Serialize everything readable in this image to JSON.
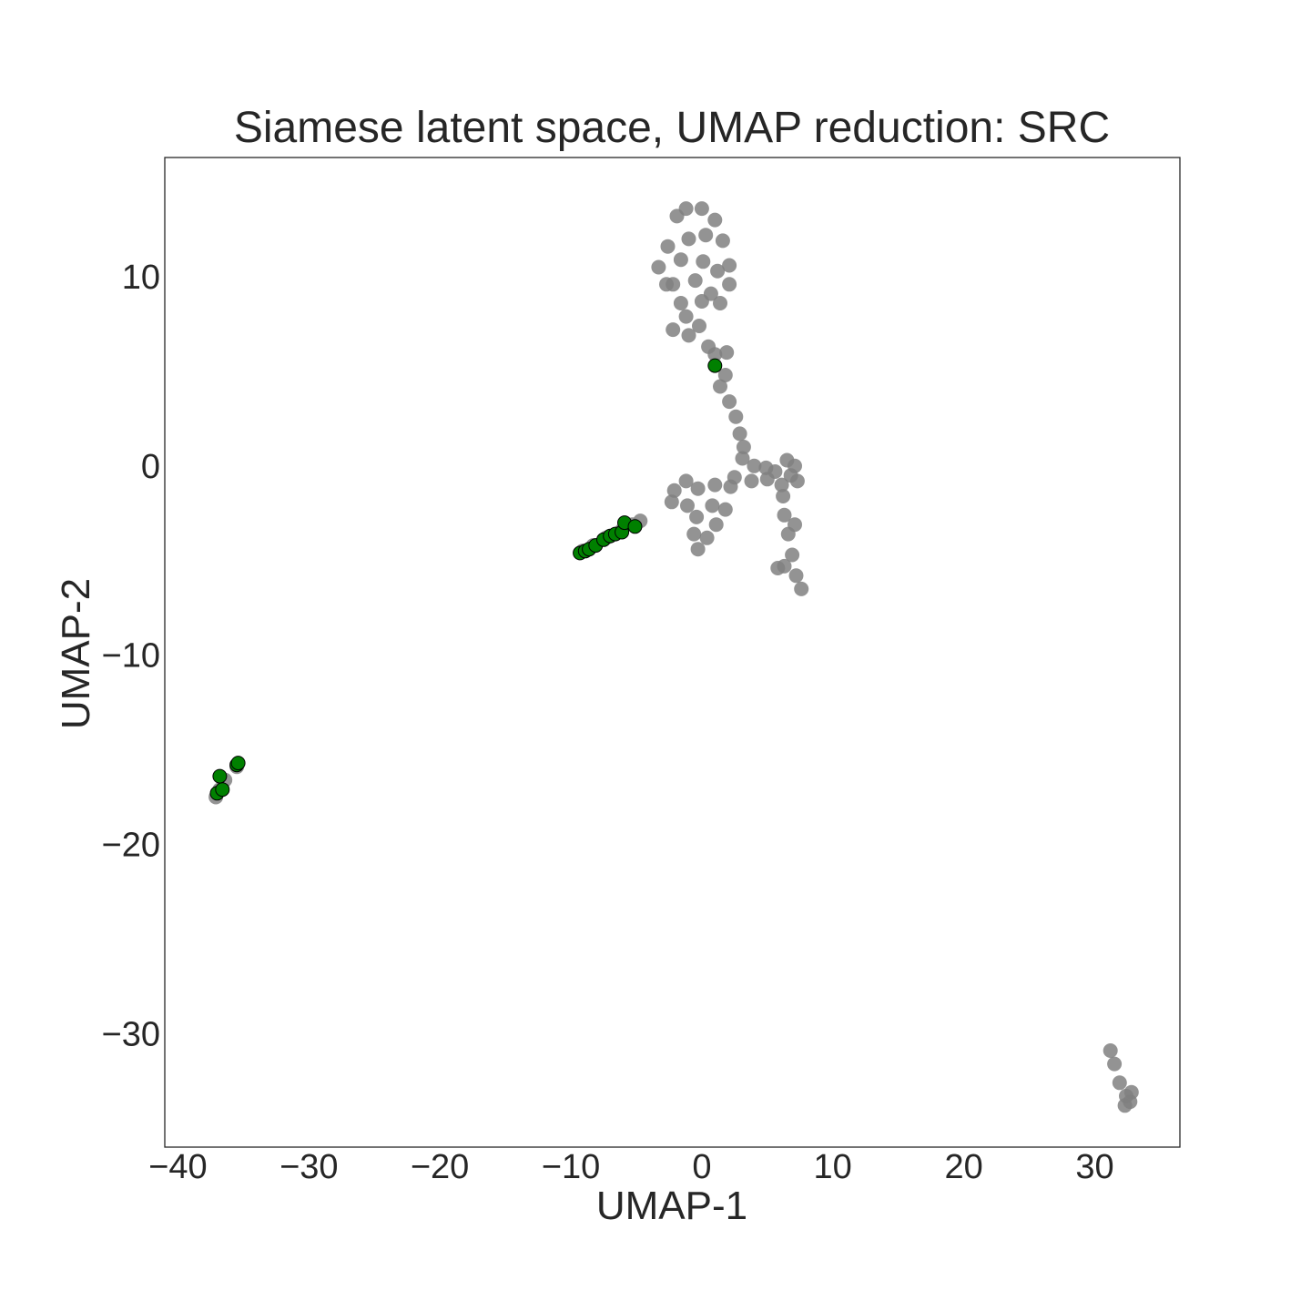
{
  "chart_data": {
    "type": "scatter",
    "title": "Siamese latent space, UMAP reduction: SRC",
    "xlabel": "UMAP-1",
    "ylabel": "UMAP-2",
    "xlim": [
      -41,
      36.5
    ],
    "ylim": [
      -36,
      16.3
    ],
    "xticks": [
      -40,
      -30,
      -20,
      -10,
      0,
      10,
      20,
      30
    ],
    "yticks": [
      10,
      0,
      -10,
      -20,
      -30
    ],
    "grid": false,
    "legend": "none",
    "series": [
      {
        "color": "#808080",
        "style": "background-cluster",
        "points": [
          [
            -1.9,
            13.2
          ],
          [
            -2.6,
            11.6
          ],
          [
            -3.3,
            10.5
          ],
          [
            -2.7,
            9.6
          ],
          [
            -1.2,
            13.6
          ],
          [
            0.0,
            13.6
          ],
          [
            1.0,
            13.0
          ],
          [
            1.6,
            11.9
          ],
          [
            2.1,
            10.6
          ],
          [
            2.1,
            9.6
          ],
          [
            1.4,
            8.6
          ],
          [
            0.7,
            9.1
          ],
          [
            -1.0,
            12.0
          ],
          [
            0.3,
            12.2
          ],
          [
            -1.6,
            10.9
          ],
          [
            0.1,
            10.8
          ],
          [
            -2.2,
            9.6
          ],
          [
            -0.5,
            9.8
          ],
          [
            1.2,
            10.3
          ],
          [
            -1.6,
            8.6
          ],
          [
            0.0,
            8.7
          ],
          [
            -1.2,
            7.9
          ],
          [
            -2.2,
            7.2
          ],
          [
            -1.0,
            6.9
          ],
          [
            -0.2,
            7.4
          ],
          [
            0.5,
            6.3
          ],
          [
            1.0,
            5.9
          ],
          [
            1.9,
            6.0
          ],
          [
            1.8,
            4.8
          ],
          [
            1.4,
            4.2
          ],
          [
            2.1,
            3.4
          ],
          [
            2.6,
            2.6
          ],
          [
            2.9,
            1.7
          ],
          [
            3.2,
            1.0
          ],
          [
            3.1,
            0.4
          ],
          [
            2.5,
            -0.6
          ],
          [
            4.0,
            0.0
          ],
          [
            4.9,
            -0.1
          ],
          [
            5.6,
            -0.3
          ],
          [
            6.5,
            0.3
          ],
          [
            7.1,
            0.0
          ],
          [
            7.3,
            -0.8
          ],
          [
            6.8,
            -0.5
          ],
          [
            6.1,
            -1.0
          ],
          [
            5.0,
            -0.7
          ],
          [
            3.8,
            -0.8
          ],
          [
            2.2,
            -1.1
          ],
          [
            1.0,
            -1.0
          ],
          [
            -0.3,
            -1.2
          ],
          [
            -1.2,
            -0.8
          ],
          [
            -2.1,
            -1.3
          ],
          [
            -2.3,
            -1.9
          ],
          [
            -1.1,
            -2.1
          ],
          [
            -0.4,
            -2.7
          ],
          [
            -0.6,
            -3.6
          ],
          [
            -0.3,
            -4.4
          ],
          [
            0.4,
            -3.8
          ],
          [
            1.1,
            -3.1
          ],
          [
            0.8,
            -2.1
          ],
          [
            1.8,
            -2.3
          ],
          [
            6.2,
            -1.6
          ],
          [
            6.3,
            -2.6
          ],
          [
            6.6,
            -3.6
          ],
          [
            6.9,
            -4.7
          ],
          [
            6.3,
            -5.3
          ],
          [
            7.2,
            -5.8
          ],
          [
            7.6,
            -6.5
          ],
          [
            5.8,
            -5.4
          ],
          [
            7.1,
            -3.1
          ],
          [
            -4.7,
            -2.9
          ],
          [
            -6.1,
            -3.4
          ],
          [
            -7.3,
            -3.8
          ],
          [
            -8.3,
            -4.2
          ],
          [
            -9.1,
            -4.5
          ],
          [
            -5.3,
            -3.1
          ],
          [
            -37.1,
            -17.5
          ],
          [
            -36.8,
            -17.1
          ],
          [
            -36.4,
            -16.6
          ],
          [
            -35.5,
            -15.9
          ],
          [
            31.2,
            -30.9
          ],
          [
            31.5,
            -31.6
          ],
          [
            31.9,
            -32.6
          ],
          [
            32.4,
            -33.3
          ],
          [
            32.7,
            -33.6
          ],
          [
            32.3,
            -33.8
          ],
          [
            32.8,
            -33.1
          ]
        ]
      },
      {
        "color": "#008000",
        "style": "highlighted",
        "points": [
          [
            1.0,
            5.3
          ],
          [
            -9.3,
            -4.6
          ],
          [
            -8.9,
            -4.5
          ],
          [
            -8.6,
            -4.4
          ],
          [
            -8.1,
            -4.2
          ],
          [
            -7.5,
            -3.9
          ],
          [
            -7.0,
            -3.7
          ],
          [
            -6.6,
            -3.6
          ],
          [
            -6.1,
            -3.5
          ],
          [
            -5.9,
            -3.0
          ],
          [
            -5.1,
            -3.2
          ],
          [
            -37.0,
            -17.3
          ],
          [
            -36.6,
            -17.1
          ],
          [
            -36.8,
            -16.4
          ],
          [
            -35.5,
            -15.8
          ],
          [
            -35.4,
            -15.7
          ]
        ]
      }
    ]
  }
}
